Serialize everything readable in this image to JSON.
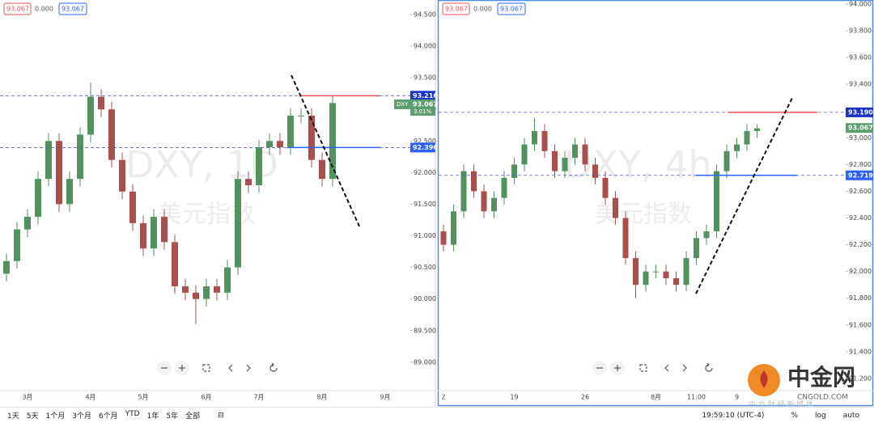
{
  "charts": [
    {
      "type": "candlestick",
      "title": "DXY, 1D",
      "subtitle": "美元指数",
      "header_values": [
        "93.067",
        "0.000",
        "93.067"
      ],
      "up_color": "#53915f",
      "down_color": "#a9504f",
      "ylim": [
        88.55,
        94.73
      ],
      "yticks": [
        {
          "value": 89,
          "label": "89.000"
        },
        {
          "value": 89.5,
          "label": "89.500"
        },
        {
          "value": 90,
          "label": "90.000"
        },
        {
          "value": 90.5,
          "label": "90.500"
        },
        {
          "value": 91,
          "label": "91.000"
        },
        {
          "value": 91.5,
          "label": "91.500"
        },
        {
          "value": 92,
          "label": "92.000"
        },
        {
          "value": 92.5,
          "label": "92.500"
        },
        {
          "value": 93,
          "label": "93.000"
        },
        {
          "value": 93.5,
          "label": "93.500"
        },
        {
          "value": 94,
          "label": "94.000"
        },
        {
          "value": 94.5,
          "label": "94.500"
        }
      ],
      "categories": [
        null,
        null,
        "3月",
        null,
        null,
        null,
        null,
        null,
        "4月",
        null,
        null,
        null,
        null,
        "5月",
        null,
        null,
        null,
        null,
        null,
        "6月",
        null,
        null,
        null,
        null,
        "7月",
        null,
        null,
        null,
        null,
        null,
        "8月",
        null
      ],
      "future_categories": [
        null,
        null,
        null,
        null,
        "9月"
      ],
      "open": [
        90.4,
        90.6,
        91.1,
        91.3,
        91.9,
        92.5,
        91.5,
        91.9,
        92.6,
        93.2,
        93.0,
        92.2,
        91.7,
        91.2,
        90.8,
        91.3,
        90.9,
        90.2,
        90.1,
        90.0,
        90.2,
        90.1,
        90.5,
        91.9,
        91.8,
        92.4,
        92.5,
        92.4,
        92.9,
        92.9,
        92.2,
        91.9
      ],
      "high": [
        90.72,
        91.22,
        91.42,
        92.02,
        92.62,
        92.62,
        92.02,
        92.72,
        93.42,
        93.32,
        93.12,
        92.32,
        91.82,
        91.32,
        91.42,
        91.42,
        91.02,
        90.32,
        90.22,
        90.32,
        90.32,
        90.62,
        92.02,
        92.02,
        92.52,
        92.62,
        92.62,
        93.02,
        93.02,
        93.02,
        92.32,
        93.22
      ],
      "low": [
        90.28,
        90.48,
        90.98,
        91.18,
        91.78,
        91.38,
        91.38,
        91.78,
        92.48,
        92.88,
        92.08,
        91.58,
        91.08,
        90.68,
        90.68,
        90.78,
        90.08,
        89.98,
        89.6,
        89.88,
        89.98,
        89.98,
        90.38,
        91.68,
        91.68,
        92.28,
        92.28,
        92.28,
        92.78,
        92.08,
        91.78,
        91.78
      ],
      "close": [
        90.6,
        91.1,
        91.3,
        91.9,
        92.5,
        91.5,
        91.9,
        92.6,
        93.2,
        93.0,
        92.2,
        91.7,
        91.2,
        90.8,
        91.3,
        90.9,
        90.2,
        90.1,
        90.0,
        90.2,
        90.1,
        90.5,
        91.9,
        91.8,
        92.4,
        92.5,
        92.4,
        92.9,
        92.9,
        92.2,
        91.9,
        93.1
      ],
      "levels": [
        {
          "value": 93.216,
          "label": "93.216",
          "color": "#ef5350",
          "box_color": "#1a33c9"
        },
        {
          "value": 92.396,
          "label": "92.396",
          "color": "#2962ff",
          "box_color": "#2962ff"
        }
      ],
      "last_price": {
        "value": 93.067,
        "label": "93.067",
        "symbol": "DXY",
        "change": "3.01%",
        "color": "#5b9f6e"
      }
    },
    {
      "type": "candlestick",
      "title": "DXY, 4h",
      "subtitle": "美元指数",
      "header_values": [
        "93.067",
        "0.000",
        "93.067"
      ],
      "up_color": "#53915f",
      "down_color": "#a9504f",
      "ylim": [
        91.109,
        94.03
      ],
      "yticks": [
        {
          "value": 91.2,
          "label": "91.200"
        },
        {
          "value": 91.4,
          "label": "91.400"
        },
        {
          "value": 91.6,
          "label": "91.600"
        },
        {
          "value": 91.8,
          "label": "91.800"
        },
        {
          "value": 92,
          "label": "92.000"
        },
        {
          "value": 92.2,
          "label": "92.200"
        },
        {
          "value": 92.4,
          "label": "92.400"
        },
        {
          "value": 92.6,
          "label": "92.600"
        },
        {
          "value": 92.8,
          "label": "92.800"
        },
        {
          "value": 93,
          "label": "93.000"
        },
        {
          "value": 93.2,
          "label": "93.200"
        },
        {
          "value": 93.4,
          "label": "93.400"
        },
        {
          "value": 93.6,
          "label": "93.600"
        },
        {
          "value": 93.8,
          "label": "93.800"
        },
        {
          "value": 94,
          "label": "94.000"
        }
      ],
      "categories": [
        "2",
        null,
        null,
        null,
        null,
        null,
        null,
        "19",
        null,
        null,
        null,
        null,
        null,
        null,
        "26",
        null,
        null,
        null,
        null,
        null,
        null,
        "8月",
        null,
        null,
        null,
        "11:00",
        null,
        null,
        null,
        "9",
        null,
        null
      ],
      "open": [
        92.3,
        92.2,
        92.45,
        92.75,
        92.6,
        92.45,
        92.55,
        92.7,
        92.8,
        92.95,
        93.05,
        92.9,
        92.75,
        92.85,
        92.95,
        92.8,
        92.7,
        92.55,
        92.4,
        92.1,
        91.9,
        92.0,
        92.0,
        91.95,
        91.9,
        92.1,
        92.25,
        92.3,
        92.75,
        92.9,
        92.95,
        93.05
      ],
      "high": [
        92.35,
        92.5,
        92.8,
        92.8,
        92.65,
        92.6,
        92.75,
        92.85,
        93.0,
        93.15,
        93.1,
        92.95,
        92.9,
        93.0,
        93.0,
        92.85,
        92.75,
        92.6,
        92.45,
        92.15,
        92.05,
        92.05,
        92.05,
        92.0,
        92.15,
        92.3,
        92.35,
        92.8,
        92.95,
        93.0,
        93.1,
        93.1
      ],
      "low": [
        92.15,
        92.15,
        92.4,
        92.55,
        92.4,
        92.4,
        92.5,
        92.65,
        92.75,
        92.9,
        92.85,
        92.7,
        92.7,
        92.8,
        92.75,
        92.65,
        92.5,
        92.35,
        92.05,
        91.8,
        91.85,
        91.95,
        91.9,
        91.85,
        91.85,
        92.05,
        92.2,
        92.25,
        92.7,
        92.85,
        92.9,
        93.0
      ],
      "close": [
        92.2,
        92.45,
        92.75,
        92.6,
        92.45,
        92.55,
        92.7,
        92.8,
        92.95,
        93.05,
        92.9,
        92.75,
        92.85,
        92.95,
        92.8,
        92.7,
        92.55,
        92.4,
        92.1,
        91.9,
        92.0,
        92.0,
        91.95,
        91.9,
        92.1,
        92.25,
        92.3,
        92.75,
        92.9,
        92.95,
        93.05,
        93.07
      ],
      "levels": [
        {
          "value": 93.19,
          "label": "93.190",
          "color": "#ef5350",
          "box_color": "#1a33c9"
        },
        {
          "value": 92.719,
          "label": "92.719",
          "color": "#2962ff",
          "box_color": "#2962ff"
        }
      ],
      "last_price": {
        "value": 93.067,
        "label": "93.067",
        "color": "#5b9f6e"
      }
    }
  ],
  "toolbar": {
    "ranges": [
      "1天",
      "5天",
      "1个月",
      "3个月",
      "6个月",
      "YTD",
      "1年",
      "5年",
      "全部"
    ],
    "time": "19:59:10 (UTC-4)",
    "options": [
      "%",
      "log",
      "auto"
    ]
  },
  "watermark": {
    "title": "中金网",
    "subtitle": "CNGOLD.COM",
    "tagline": "中 文 财 经 新 媒 体"
  }
}
